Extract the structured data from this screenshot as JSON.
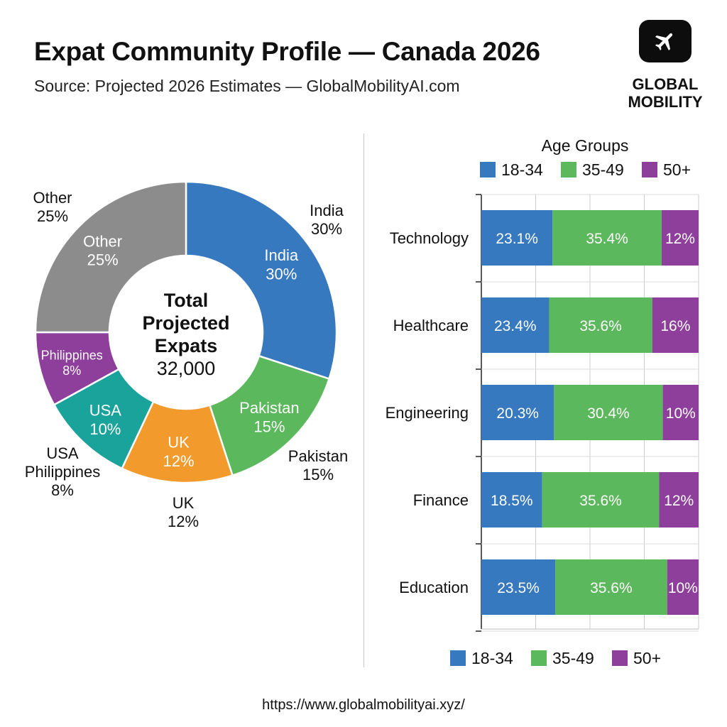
{
  "header": {
    "title": "Expat Community Profile — Canada 2026",
    "subtitle": "Source: Projected 2026 Estimates — GlobalMobilityAI.com"
  },
  "logo": {
    "icon": "airplane-icon",
    "line1": "GLOBAL",
    "line2": "MOBILITY"
  },
  "footer": {
    "url": "https://www.globalmobilityai.xyz/"
  },
  "chart_data": [
    {
      "type": "pie",
      "variant": "donut",
      "center_label": {
        "line1": "Total",
        "line2": "Projected",
        "line3": "Expats",
        "value": "32,000"
      },
      "slices": [
        {
          "label": "India",
          "value": 30,
          "display": "30%",
          "color": "#3779bf"
        },
        {
          "label": "Pakistan",
          "value": 15,
          "display": "15%",
          "color": "#5cb85c"
        },
        {
          "label": "UK",
          "value": 12,
          "display": "12%",
          "color": "#f39a2d"
        },
        {
          "label": "USA",
          "value": 10,
          "display": "10%",
          "color": "#1aa39a"
        },
        {
          "label": "Philippines",
          "value": 8,
          "display": "8%",
          "color": "#8e3e9b"
        },
        {
          "label": "Other",
          "value": 25,
          "display": "25%",
          "color": "#8c8c8c"
        }
      ],
      "outer_labels": [
        {
          "name": "India",
          "value": "30%"
        },
        {
          "name": "Pakistan",
          "value": "15%"
        },
        {
          "name": "UK",
          "value": "12%"
        },
        {
          "name": "USA",
          "value": ""
        },
        {
          "name": "Philippines",
          "value": "8%"
        },
        {
          "name": "Other",
          "value": "25%"
        }
      ]
    },
    {
      "type": "bar",
      "orientation": "horizontal",
      "stacked": true,
      "legend_title": "Age Groups",
      "legend_placement": "top and bottom",
      "categories": [
        "Technology",
        "Healthcare",
        "Engineering",
        "Finance",
        "Education"
      ],
      "series": [
        {
          "name": "18-34",
          "color": "#3779bf",
          "values": [
            23.1,
            23.4,
            20.3,
            18.5,
            23.5
          ],
          "labels": [
            "23.1%",
            "23.4%",
            "20.3%",
            "18.5%",
            "23.5%"
          ]
        },
        {
          "name": "35-49",
          "color": "#5cb85c",
          "values": [
            35.4,
            35.6,
            30.4,
            35.6,
            35.6
          ],
          "labels": [
            "35.4%",
            "35.6%",
            "30.4%",
            "35.6%",
            "35.6%"
          ]
        },
        {
          "name": "50+",
          "color": "#8e3e9b",
          "values": [
            12,
            16,
            10,
            12,
            10
          ],
          "labels": [
            "12%",
            "16%",
            "10%",
            "12%",
            "10%"
          ]
        }
      ],
      "grid": true
    }
  ]
}
